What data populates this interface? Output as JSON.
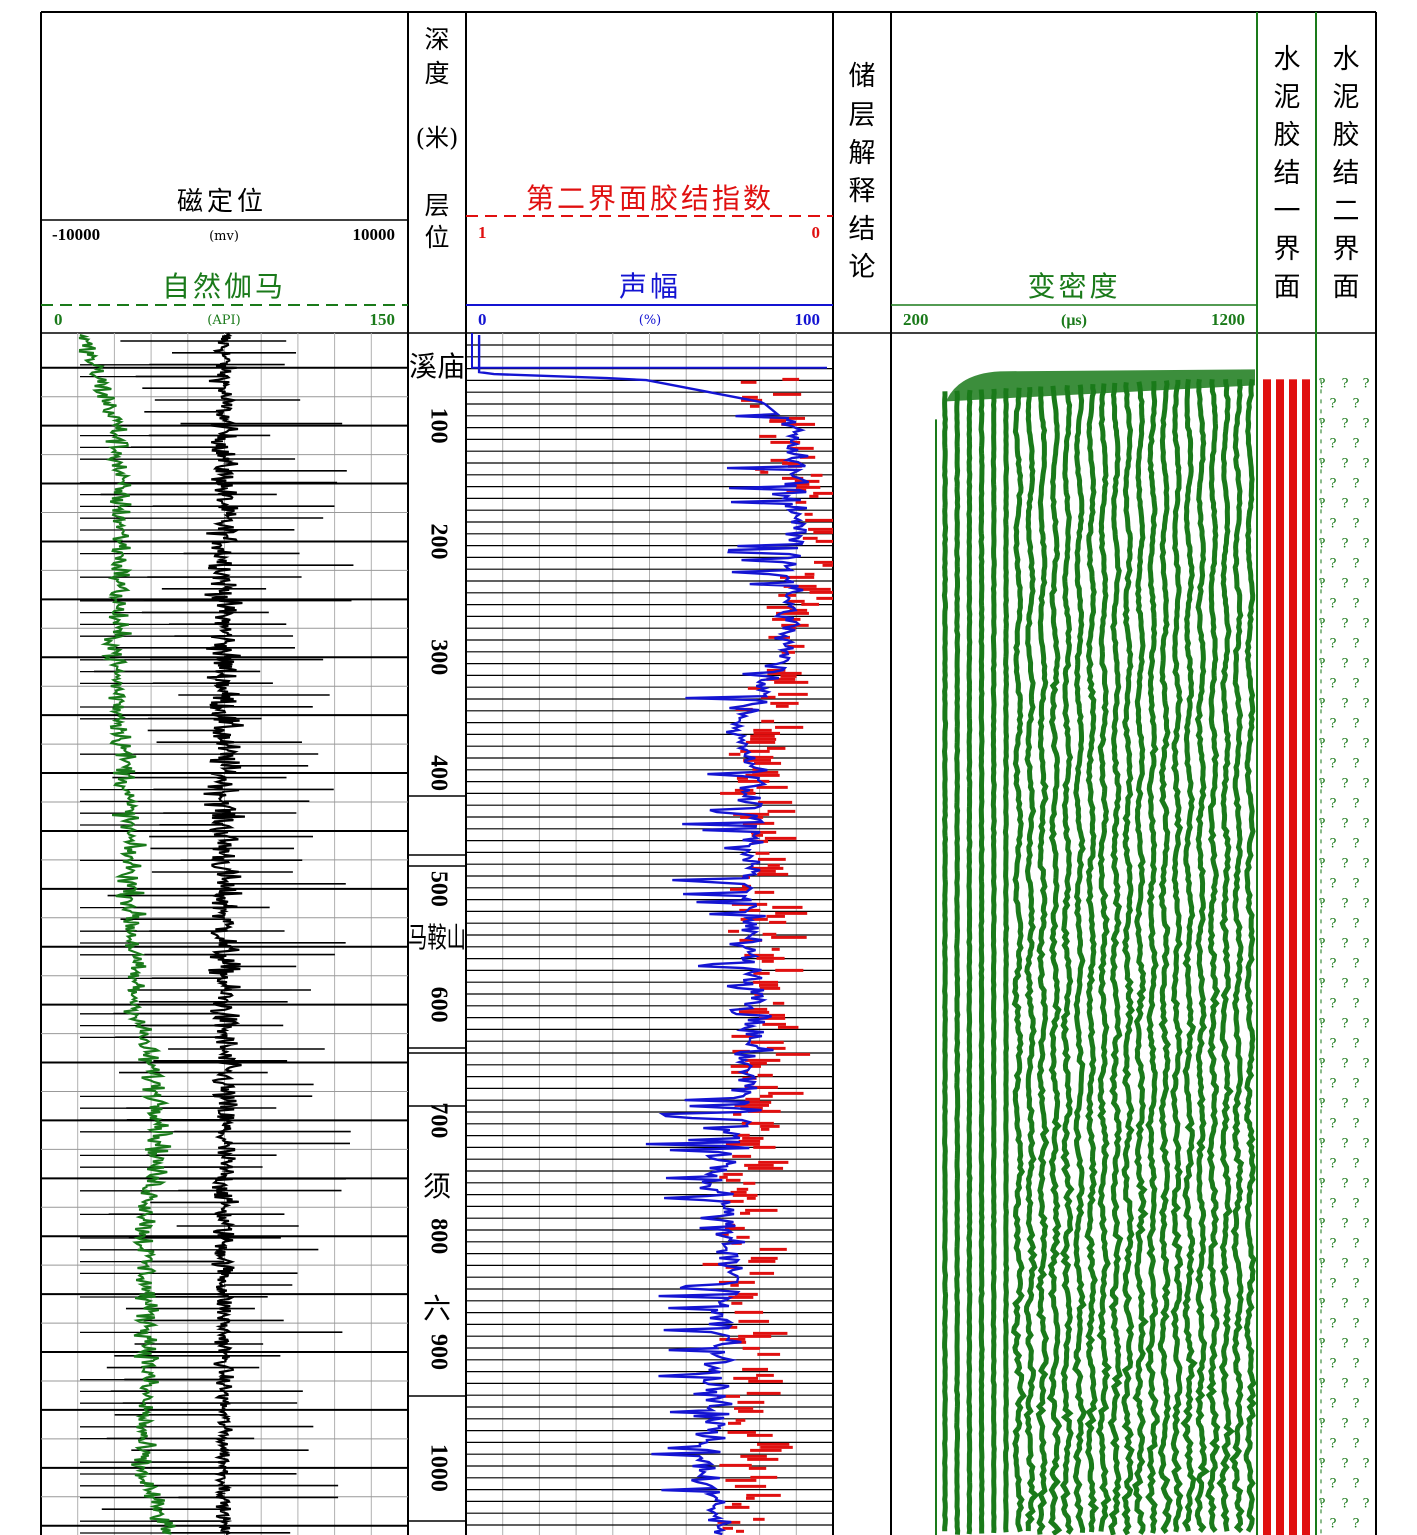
{
  "colors": {
    "black": "#000000",
    "green": "#1a7a1a",
    "blue": "#1414d2",
    "red": "#e01010",
    "grid": "#999999"
  },
  "header": {
    "ccl": {
      "title": "磁定位",
      "min": "-10000",
      "unit": "(mv)",
      "max": "10000"
    },
    "gr": {
      "title": "自然伽马",
      "min": "0",
      "unit": "(API)",
      "max": "150"
    },
    "depth_title_chars": [
      "深",
      "度"
    ],
    "depth_unit": "(米)",
    "layer_title_chars": [
      "层",
      "位"
    ],
    "sbi": {
      "title": "第二界面胶结指数",
      "min": "1",
      "max": "0"
    },
    "amplitude": {
      "title": "声幅",
      "min": "0",
      "unit": "(%)",
      "max": "100"
    },
    "interpretation_title_chars": [
      "储",
      "层",
      "解",
      "释",
      "结",
      "论"
    ],
    "vdl": {
      "title": "变密度",
      "min": "200",
      "unit": "(μs)",
      "max": "1200"
    },
    "bond1_title_chars": [
      "水",
      "泥",
      "胶",
      "结",
      "一",
      "界",
      "面"
    ],
    "bond2_title_chars": [
      "水",
      "泥",
      "胶",
      "结",
      "二",
      "界",
      "面"
    ]
  },
  "depth_labels": [
    "100",
    "200",
    "300",
    "400",
    "500",
    "600",
    "700",
    "800",
    "900",
    "1000"
  ],
  "formations": [
    {
      "name": "溪庙",
      "orientation": "horizontal"
    },
    {
      "name": "马鞍山",
      "orientation": "horizontal"
    },
    {
      "name": "须",
      "orientation": "vertical"
    },
    {
      "name": "六",
      "orientation": "vertical"
    }
  ],
  "chart_data": {
    "type": "line",
    "depth_axis": {
      "unit": "米",
      "range": [
        20,
        1058
      ],
      "direction": "down"
    },
    "tracks": [
      {
        "name": "自然伽马",
        "unit": "API",
        "range": [
          0,
          150
        ],
        "color": "#1a7a1a",
        "depth": [
          20,
          100,
          200,
          300,
          400,
          500,
          600,
          700,
          800,
          900,
          1000,
          1058
        ],
        "values": [
          12,
          28,
          30,
          27,
          32,
          34,
          36,
          48,
          40,
          42,
          38,
          50
        ]
      },
      {
        "name": "磁定位",
        "unit": "mv",
        "range": [
          -10000,
          10000
        ],
        "color": "#000000",
        "values_note": ""
      },
      {
        "name": "声幅",
        "unit": "%",
        "range": [
          0,
          100
        ],
        "color": "#1414d2",
        "depth": [
          20,
          55,
          60,
          80,
          100,
          150,
          200,
          300,
          360,
          400,
          500,
          600,
          700,
          760,
          800,
          900,
          1000,
          1058
        ],
        "values": [
          2,
          2,
          48,
          82,
          90,
          92,
          91,
          88,
          75,
          80,
          78,
          80,
          76,
          68,
          74,
          70,
          66,
          70
        ]
      },
      {
        "name": "第二界面胶结指数",
        "range": [
          1,
          0
        ],
        "color": "#e01010",
        "depth": [
          60,
          200,
          400,
          600,
          800,
          1000,
          1058
        ],
        "values": [
          0.18,
          0.05,
          0.22,
          0.2,
          0.25,
          0.25,
          0.28
        ]
      },
      {
        "name": "变密度",
        "unit": "μs",
        "range": [
          200,
          1200
        ],
        "color": "#1a7a1a",
        "start_depth": 60
      }
    ],
    "depth_ticks": [
      100,
      200,
      300,
      400,
      500,
      600,
      700,
      800,
      900,
      1000
    ]
  }
}
